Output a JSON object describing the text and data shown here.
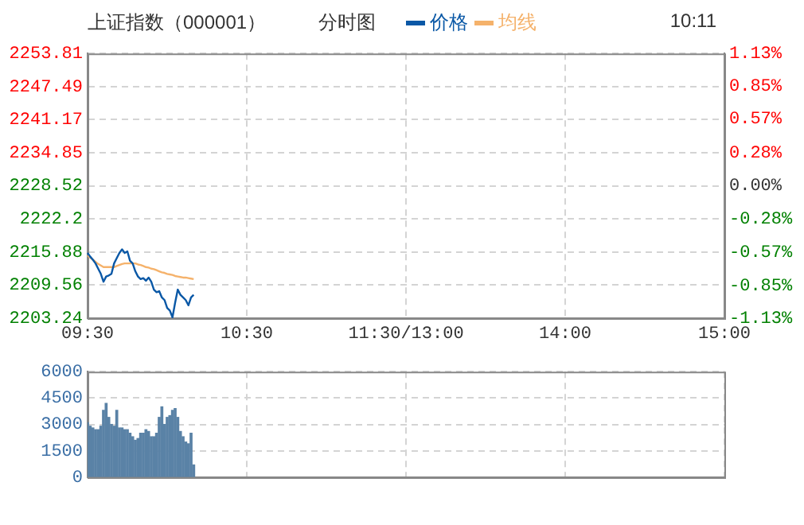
{
  "chart_data": [
    {
      "type": "line",
      "title": "上证指数（000001）",
      "subtitle": "分时图",
      "annotations": [
        "10:11"
      ],
      "categories": [
        "09:30",
        null,
        null,
        null,
        null,
        null,
        null,
        null,
        null,
        null,
        null,
        null,
        null,
        null,
        null,
        null,
        null,
        null,
        null,
        null,
        null,
        null,
        null,
        null,
        null,
        null,
        null,
        null,
        null,
        null,
        null,
        null,
        null,
        null,
        null,
        null,
        null,
        null,
        null,
        null,
        null,
        null,
        null,
        null,
        null,
        null,
        null,
        null,
        null,
        null,
        null,
        null,
        null,
        null,
        null,
        null,
        null,
        null,
        null,
        null,
        "10:30",
        null,
        null,
        null,
        null,
        null,
        null,
        null,
        null,
        null,
        null,
        null,
        null,
        null,
        null,
        null,
        null,
        null,
        null,
        null,
        null,
        null,
        null,
        null,
        null,
        null,
        null,
        null,
        null,
        null,
        null,
        null,
        null,
        null,
        null,
        null,
        null,
        null,
        null,
        null,
        null,
        null,
        null,
        null,
        null,
        null,
        null,
        null,
        null,
        null,
        null,
        null,
        null,
        null,
        null,
        null,
        null,
        null,
        null,
        null,
        "11:30/13:00",
        null,
        null,
        null,
        null,
        null,
        null,
        null,
        null,
        null,
        null,
        null,
        null,
        null,
        null,
        null,
        null,
        null,
        null,
        null,
        null,
        null,
        null,
        null,
        null,
        null,
        null,
        null,
        null,
        null,
        null,
        null,
        null,
        null,
        null,
        null,
        null,
        null,
        null,
        null,
        null,
        null,
        null,
        null,
        null,
        null,
        null,
        null,
        null,
        null,
        null,
        null,
        null,
        null,
        null,
        null,
        null,
        null,
        null,
        null,
        "14:00",
        null,
        null,
        null,
        null,
        null,
        null,
        null,
        null,
        null,
        null,
        null,
        null,
        null,
        null,
        null,
        null,
        null,
        null,
        null,
        null,
        null,
        null,
        null,
        null,
        null,
        null,
        null,
        null,
        null,
        null,
        null,
        null,
        null,
        null,
        null,
        null,
        null,
        null,
        null,
        null,
        null,
        null,
        null,
        null,
        null,
        null,
        null,
        null,
        null,
        null,
        null,
        null,
        null,
        null,
        null,
        null,
        null,
        null,
        null,
        "15:00"
      ],
      "series": [
        {
          "name": "价格",
          "color": "#0a58a6",
          "values": [
            2215.7,
            2215.0,
            2214.4,
            2213.7,
            2212.7,
            2211.7,
            2210.2,
            2211.2,
            2211.4,
            2211.7,
            2213.7,
            2214.7,
            2215.7,
            2216.4,
            2215.7,
            2216.0,
            2214.2,
            2213.7,
            2212.2,
            2211.2,
            2210.7,
            2210.9,
            2210.4,
            2211.0,
            2210.2,
            2208.7,
            2208.2,
            2208.4,
            2207.2,
            2206.7,
            2205.2,
            2204.7,
            2203.4,
            2206.2,
            2208.7,
            2207.7,
            2207.2,
            2206.7,
            2205.7,
            2207.2,
            2207.7,
            null,
            null,
            null,
            null,
            null,
            null,
            null,
            null,
            null,
            null,
            null,
            null,
            null,
            null,
            null,
            null,
            null,
            null,
            null,
            null,
            null,
            null,
            null,
            null,
            null,
            null,
            null,
            null,
            null,
            null,
            null,
            null,
            null,
            null,
            null,
            null,
            null,
            null,
            null,
            null,
            null,
            null,
            null,
            null,
            null,
            null,
            null,
            null,
            null,
            null,
            null,
            null,
            null,
            null,
            null,
            null,
            null,
            null,
            null,
            null,
            null,
            null,
            null,
            null,
            null,
            null,
            null,
            null,
            null,
            null,
            null,
            null,
            null,
            null,
            null,
            null,
            null,
            null,
            null,
            null,
            null,
            null,
            null,
            null,
            null,
            null,
            null,
            null,
            null,
            null,
            null,
            null,
            null,
            null,
            null,
            null,
            null,
            null,
            null,
            null,
            null,
            null,
            null,
            null,
            null,
            null,
            null,
            null,
            null,
            null,
            null,
            null,
            null,
            null,
            null,
            null,
            null,
            null,
            null,
            null,
            null,
            null,
            null,
            null,
            null,
            null,
            null,
            null,
            null,
            null,
            null,
            null,
            null,
            null,
            null,
            null,
            null,
            null,
            null,
            null,
            null,
            null,
            null,
            null,
            null,
            null,
            null,
            null,
            null,
            null,
            null,
            null,
            null,
            null,
            null,
            null,
            null,
            null,
            null,
            null,
            null,
            null,
            null,
            null,
            null,
            null,
            null,
            null,
            null,
            null,
            null,
            null,
            null,
            null,
            null,
            null,
            null,
            null,
            null,
            null,
            null,
            null,
            null,
            null,
            null,
            null,
            null,
            null,
            null,
            null,
            null,
            null,
            null,
            null,
            null,
            null,
            null,
            null,
            null,
            null
          ]
        },
        {
          "name": "均线",
          "color": "#f5b26b",
          "values": [
            2215.2,
            2214.8,
            2214.4,
            2214.0,
            2213.6,
            2213.3,
            2213.0,
            2213.0,
            2213.0,
            2213.0,
            2213.0,
            2213.2,
            2213.4,
            2213.6,
            2213.7,
            2213.7,
            2213.7,
            2213.7,
            2213.7,
            2213.5,
            2213.4,
            2213.2,
            2213.0,
            2212.9,
            2212.7,
            2212.6,
            2212.4,
            2212.2,
            2212.0,
            2211.9,
            2211.7,
            2211.6,
            2211.5,
            2211.3,
            2211.2,
            2211.1,
            2211.0,
            2211.0,
            2210.9,
            2210.8,
            2210.7,
            null,
            null,
            null,
            null,
            null,
            null,
            null,
            null,
            null,
            null,
            null,
            null,
            null,
            null,
            null,
            null,
            null,
            null,
            null,
            null,
            null,
            null,
            null,
            null,
            null,
            null,
            null,
            null,
            null,
            null,
            null,
            null,
            null,
            null,
            null,
            null,
            null,
            null,
            null,
            null,
            null,
            null,
            null,
            null,
            null,
            null,
            null,
            null,
            null,
            null,
            null,
            null,
            null,
            null,
            null,
            null,
            null,
            null,
            null,
            null,
            null,
            null,
            null,
            null,
            null,
            null,
            null,
            null,
            null,
            null,
            null,
            null,
            null,
            null,
            null,
            null,
            null,
            null,
            null,
            null,
            null,
            null,
            null,
            null,
            null,
            null,
            null,
            null,
            null,
            null,
            null,
            null,
            null,
            null,
            null,
            null,
            null,
            null,
            null,
            null,
            null,
            null,
            null,
            null,
            null,
            null,
            null,
            null,
            null,
            null,
            null,
            null,
            null,
            null,
            null,
            null,
            null,
            null,
            null,
            null,
            null,
            null,
            null,
            null,
            null,
            null,
            null,
            null,
            null,
            null,
            null,
            null,
            null,
            null,
            null,
            null,
            null,
            null,
            null,
            null,
            null,
            null,
            null,
            null,
            null,
            null,
            null,
            null,
            null,
            null,
            null,
            null,
            null,
            null,
            null,
            null,
            null,
            null,
            null,
            null,
            null,
            null,
            null,
            null,
            null,
            null,
            null,
            null,
            null,
            null,
            null,
            null,
            null,
            null,
            null,
            null,
            null,
            null,
            null,
            null,
            null,
            null,
            null,
            null,
            null,
            null,
            null,
            null,
            null,
            null,
            null,
            null,
            null,
            null,
            null,
            null,
            null,
            null,
            null,
            null
          ]
        }
      ],
      "ylim": [
        2203.24,
        2253.81
      ],
      "yticks": [
        2203.24,
        2209.56,
        2215.88,
        2222.2,
        2228.52,
        2234.85,
        2241.17,
        2247.49,
        2253.81
      ],
      "y2lim": [
        -1.13,
        1.13
      ],
      "y2ticks": [
        {
          "value": -1.13,
          "label": "-1.13%"
        },
        {
          "value": -0.85,
          "label": "-0.85%"
        },
        {
          "value": -0.57,
          "label": "-0.57%"
        },
        {
          "value": -0.28,
          "label": "-0.28%"
        },
        {
          "value": 0,
          "label": "0.00%"
        },
        {
          "value": 0.28,
          "label": "0.28%"
        },
        {
          "value": 0.57,
          "label": "0.57%"
        },
        {
          "value": 0.85,
          "label": "0.85%"
        },
        {
          "value": 1.13,
          "label": "1.13%"
        }
      ],
      "grid": true,
      "legend": "top",
      "marker": "none"
    },
    {
      "type": "bar",
      "color": "#5a82a6",
      "categories": [
        null,
        null,
        null,
        null,
        null,
        null,
        null,
        null,
        null,
        null,
        null,
        null,
        null,
        null,
        null,
        null,
        null,
        null,
        null,
        null,
        null,
        null,
        null,
        null,
        null,
        null,
        null,
        null,
        null,
        null,
        null,
        null,
        null,
        null,
        null,
        null,
        null,
        null,
        null,
        null,
        null,
        null,
        null,
        null,
        null,
        null,
        null,
        null,
        null,
        null,
        null,
        null,
        null,
        null,
        null,
        null,
        null,
        null,
        null,
        null,
        null,
        null,
        null,
        null,
        null,
        null,
        null,
        null,
        null,
        null,
        null,
        null,
        null,
        null,
        null,
        null,
        null,
        null,
        null,
        null,
        null,
        null,
        null,
        null,
        null,
        null,
        null,
        null,
        null,
        null,
        null,
        null,
        null,
        null,
        null,
        null,
        null,
        null,
        null,
        null,
        null,
        null,
        null,
        null,
        null,
        null,
        null,
        null,
        null,
        null,
        null,
        null,
        null,
        null,
        null,
        null,
        null,
        null,
        null,
        null,
        null,
        null,
        null,
        null,
        null,
        null,
        null,
        null,
        null,
        null,
        null,
        null,
        null,
        null,
        null,
        null,
        null,
        null,
        null,
        null,
        null,
        null,
        null,
        null,
        null,
        null,
        null,
        null,
        null,
        null,
        null,
        null,
        null,
        null,
        null,
        null,
        null,
        null,
        null,
        null,
        null,
        null,
        null,
        null,
        null,
        null,
        null,
        null,
        null,
        null,
        null,
        null,
        null,
        null,
        null,
        null,
        null,
        null,
        null,
        null,
        null,
        null,
        null,
        null,
        null,
        null,
        null,
        null,
        null,
        null,
        null,
        null,
        null,
        null,
        null,
        null,
        null,
        null,
        null,
        null,
        null,
        null,
        null,
        null,
        null,
        null,
        null,
        null,
        null,
        null,
        null,
        null,
        null,
        null,
        null,
        null,
        null,
        null,
        null,
        null,
        null,
        null,
        null,
        null,
        null,
        null,
        null,
        null,
        null,
        null,
        null,
        null,
        null,
        null,
        null,
        null,
        null,
        null,
        null,
        null,
        null
      ],
      "values": [
        3100,
        2900,
        2800,
        2700,
        2700,
        2900,
        3800,
        4200,
        3400,
        3000,
        2900,
        3800,
        2800,
        2800,
        2700,
        2700,
        2500,
        2300,
        2100,
        2200,
        2500,
        2500,
        2700,
        2600,
        2300,
        2300,
        2500,
        3400,
        4000,
        3000,
        3400,
        3500,
        3800,
        3900,
        3400,
        2600,
        2300,
        2000,
        1900,
        2500,
        700,
        null,
        null,
        null,
        null,
        null,
        null,
        null,
        null,
        null,
        null,
        null,
        null,
        null,
        null,
        null,
        null,
        null,
        null,
        null,
        null,
        null,
        null,
        null,
        null,
        null,
        null,
        null,
        null,
        null,
        null,
        null,
        null,
        null,
        null,
        null,
        null,
        null,
        null,
        null,
        null,
        null,
        null,
        null,
        null,
        null,
        null,
        null,
        null,
        null,
        null,
        null,
        null,
        null,
        null,
        null,
        null,
        null,
        null,
        null,
        null,
        null,
        null,
        null,
        null,
        null,
        null,
        null,
        null,
        null,
        null,
        null,
        null,
        null,
        null,
        null,
        null,
        null,
        null,
        null,
        null,
        null,
        null,
        null,
        null,
        null,
        null,
        null,
        null,
        null,
        null,
        null,
        null,
        null,
        null,
        null,
        null,
        null,
        null,
        null,
        null,
        null,
        null,
        null,
        null,
        null,
        null,
        null,
        null,
        null,
        null,
        null,
        null,
        null,
        null,
        null,
        null,
        null,
        null,
        null,
        null,
        null,
        null,
        null,
        null,
        null,
        null,
        null,
        null,
        null,
        null,
        null,
        null,
        null,
        null,
        null,
        null,
        null,
        null,
        null,
        null,
        null,
        null,
        null,
        null,
        null,
        null,
        null,
        null,
        null,
        null,
        null,
        null,
        null,
        null,
        null,
        null,
        null,
        null,
        null,
        null,
        null,
        null,
        null,
        null,
        null,
        null,
        null,
        null,
        null,
        null,
        null,
        null,
        null,
        null,
        null,
        null,
        null,
        null,
        null,
        null,
        null,
        null,
        null,
        null,
        null,
        null,
        null,
        null,
        null,
        null,
        null,
        null,
        null,
        null,
        null,
        null,
        null,
        null,
        null,
        null
      ],
      "ylim": [
        0,
        6000
      ],
      "yticks": [
        0,
        1500,
        3000,
        4500,
        6000
      ],
      "grid": true,
      "tick_labels": "y"
    }
  ]
}
